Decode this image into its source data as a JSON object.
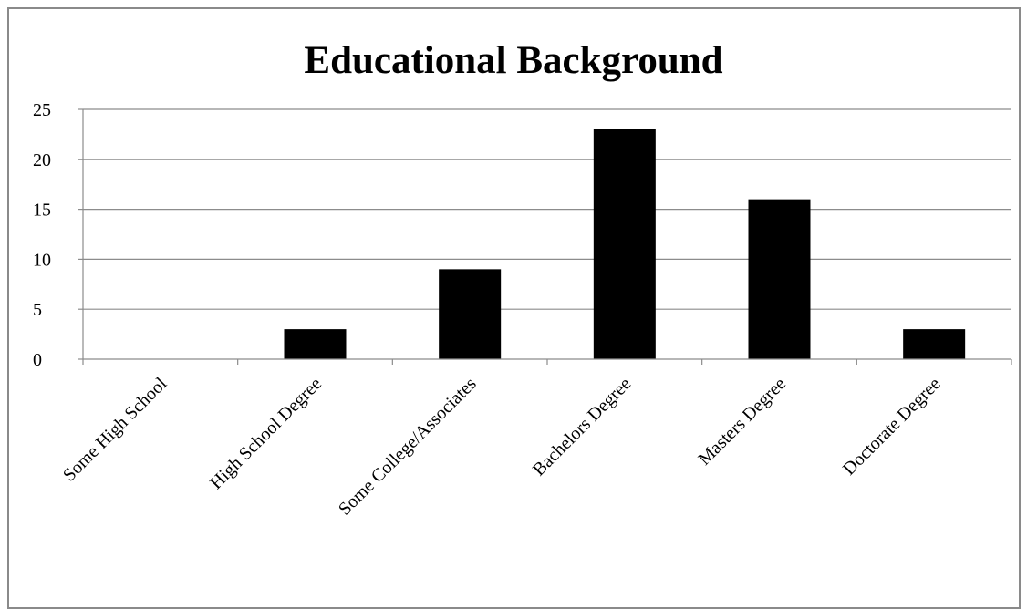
{
  "chart_data": {
    "type": "bar",
    "title": "Educational Background",
    "categories": [
      "Some High School",
      "High School Degree",
      "Some College/Associates",
      "Bachelors Degree",
      "Masters Degree",
      "Doctorate Degree"
    ],
    "values": [
      0,
      3,
      9,
      23,
      16,
      3
    ],
    "ylim": [
      0,
      25
    ],
    "yticks": [
      "0",
      "5",
      "10",
      "15",
      "20",
      "25"
    ],
    "xlabel": "",
    "ylabel": "",
    "grid": "horizontal",
    "legend": "none",
    "colors": {
      "bar": "#000000",
      "grid": "#8c8c8c",
      "axis": "#8c8c8c"
    }
  }
}
